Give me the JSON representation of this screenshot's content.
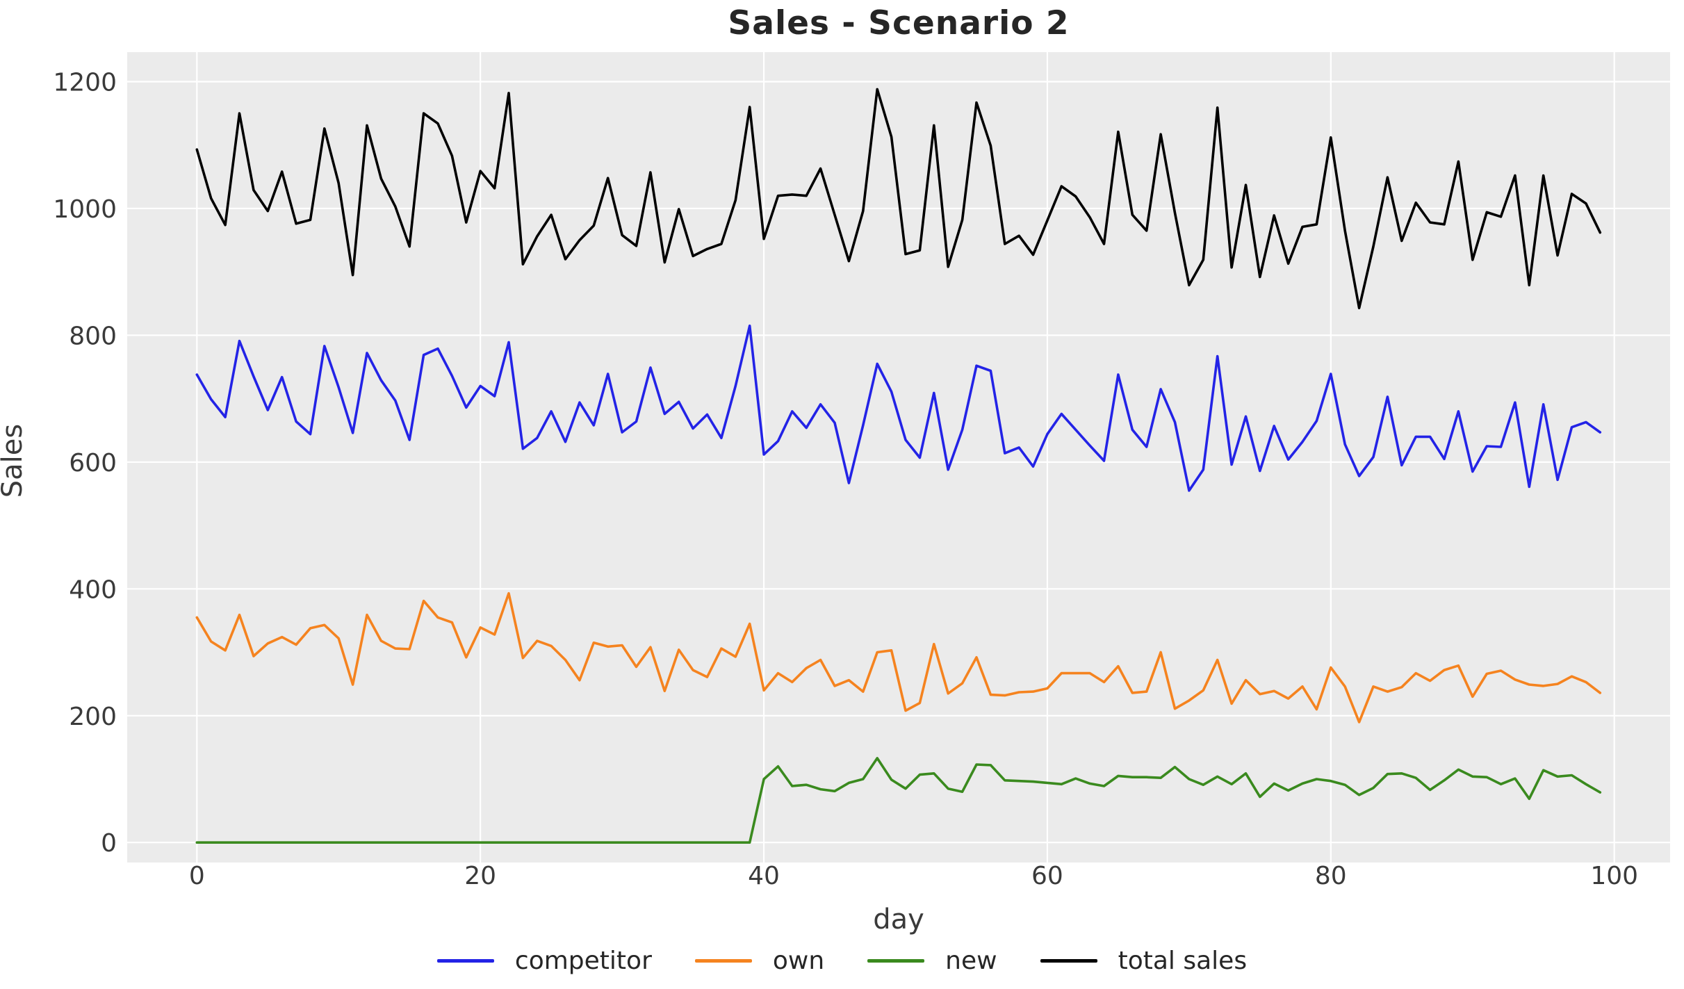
{
  "title": "Sales - Scenario 2",
  "chart_data": {
    "type": "line",
    "title": "Sales - Scenario 2",
    "xlabel": "day",
    "ylabel": "Sales",
    "xlim": [
      -4.9,
      103.9
    ],
    "ylim": [
      -31.6,
      1246.6
    ],
    "xticks": [
      0,
      20,
      40,
      60,
      80,
      100
    ],
    "yticks": [
      0,
      200,
      400,
      600,
      800,
      1000,
      1200
    ],
    "grid": true,
    "grid_color": "#ffffff",
    "plot_background": "#ebebeb",
    "legend_position": "bottom",
    "x": [
      0,
      1,
      2,
      3,
      4,
      5,
      6,
      7,
      8,
      9,
      10,
      11,
      12,
      13,
      14,
      15,
      16,
      17,
      18,
      19,
      20,
      21,
      22,
      23,
      24,
      25,
      26,
      27,
      28,
      29,
      30,
      31,
      32,
      33,
      34,
      35,
      36,
      37,
      38,
      39,
      40,
      41,
      42,
      43,
      44,
      45,
      46,
      47,
      48,
      49,
      50,
      51,
      52,
      53,
      54,
      55,
      56,
      57,
      58,
      59,
      60,
      61,
      62,
      63,
      64,
      65,
      66,
      67,
      68,
      69,
      70,
      71,
      72,
      73,
      74,
      75,
      76,
      77,
      78,
      79,
      80,
      81,
      82,
      83,
      84,
      85,
      86,
      87,
      88,
      89,
      90,
      91,
      92,
      93,
      94,
      95,
      96,
      97,
      98,
      99
    ],
    "series": [
      {
        "name": "competitor",
        "color": "#2323e6",
        "values": [
          738,
          699,
          671,
          791,
          735,
          682,
          734,
          664,
          644,
          783,
          718,
          646,
          772,
          729,
          697,
          635,
          769,
          779,
          736,
          686,
          720,
          704,
          789,
          621,
          638,
          680,
          632,
          694,
          658,
          739,
          647,
          664,
          749,
          676,
          695,
          653,
          675,
          638,
          720,
          815,
          612,
          633,
          680,
          654,
          691,
          662,
          567,
          658,
          755,
          711,
          635,
          607,
          709,
          588,
          651,
          752,
          744,
          614,
          623,
          593,
          644,
          676,
          651,
          626,
          602,
          738,
          651,
          624,
          715,
          663,
          555,
          588,
          767,
          596,
          672,
          586,
          657,
          604,
          632,
          665,
          739,
          628,
          578,
          608,
          703,
          595,
          640,
          640,
          605,
          680,
          585,
          625,
          624,
          694,
          561,
          691,
          572,
          655,
          663,
          647
        ]
      },
      {
        "name": "own",
        "color": "#f5831f",
        "values": [
          355,
          317,
          303,
          359,
          294,
          314,
          324,
          312,
          338,
          343,
          322,
          249,
          359,
          318,
          306,
          305,
          381,
          355,
          347,
          292,
          339,
          328,
          393,
          291,
          318,
          310,
          288,
          256,
          315,
          309,
          311,
          277,
          308,
          239,
          304,
          272,
          261,
          306,
          293,
          345,
          240,
          267,
          253,
          275,
          288,
          247,
          256,
          238,
          300,
          303,
          208,
          220,
          313,
          235,
          251,
          292,
          233,
          232,
          237,
          238,
          243,
          267,
          267,
          267,
          253,
          278,
          236,
          238,
          300,
          211,
          224,
          240,
          288,
          219,
          256,
          234,
          239,
          227,
          246,
          210,
          276,
          246,
          190,
          246,
          238,
          245,
          267,
          255,
          272,
          279,
          230,
          266,
          271,
          257,
          249,
          247,
          250,
          262,
          253,
          236
        ]
      },
      {
        "name": "new",
        "color": "#3a8a1e",
        "values": [
          0,
          0,
          0,
          0,
          0,
          0,
          0,
          0,
          0,
          0,
          0,
          0,
          0,
          0,
          0,
          0,
          0,
          0,
          0,
          0,
          0,
          0,
          0,
          0,
          0,
          0,
          0,
          0,
          0,
          0,
          0,
          0,
          0,
          0,
          0,
          0,
          0,
          0,
          0,
          0,
          100,
          120,
          89,
          91,
          84,
          81,
          94,
          100,
          133,
          99,
          85,
          107,
          109,
          85,
          80,
          123,
          122,
          98,
          97,
          96,
          94,
          92,
          101,
          93,
          89,
          105,
          103,
          103,
          102,
          119,
          100,
          91,
          104,
          92,
          109,
          72,
          93,
          82,
          93,
          100,
          97,
          91,
          75,
          86,
          108,
          109,
          102,
          83,
          98,
          115,
          104,
          103,
          92,
          101,
          69,
          114,
          104,
          106,
          92,
          79
        ]
      },
      {
        "name": "total sales",
        "color": "#000000",
        "values": [
          1093,
          1016,
          974,
          1150,
          1029,
          996,
          1058,
          976,
          982,
          1126,
          1040,
          895,
          1131,
          1047,
          1003,
          940,
          1150,
          1134,
          1083,
          978,
          1059,
          1032,
          1182,
          912,
          956,
          990,
          920,
          950,
          973,
          1048,
          958,
          941,
          1057,
          915,
          999,
          925,
          936,
          944,
          1013,
          1160,
          952,
          1020,
          1022,
          1020,
          1063,
          990,
          917,
          996,
          1188,
          1113,
          928,
          934,
          1131,
          908,
          982,
          1167,
          1099,
          944,
          957,
          927,
          981,
          1035,
          1019,
          986,
          944,
          1121,
          990,
          965,
          1117,
          993,
          879,
          919,
          1159,
          907,
          1037,
          892,
          989,
          913,
          971,
          975,
          1112,
          965,
          843,
          940,
          1049,
          949,
          1009,
          978,
          975,
          1074,
          919,
          994,
          987,
          1052,
          879,
          1052,
          926,
          1023,
          1008,
          962
        ]
      }
    ]
  }
}
